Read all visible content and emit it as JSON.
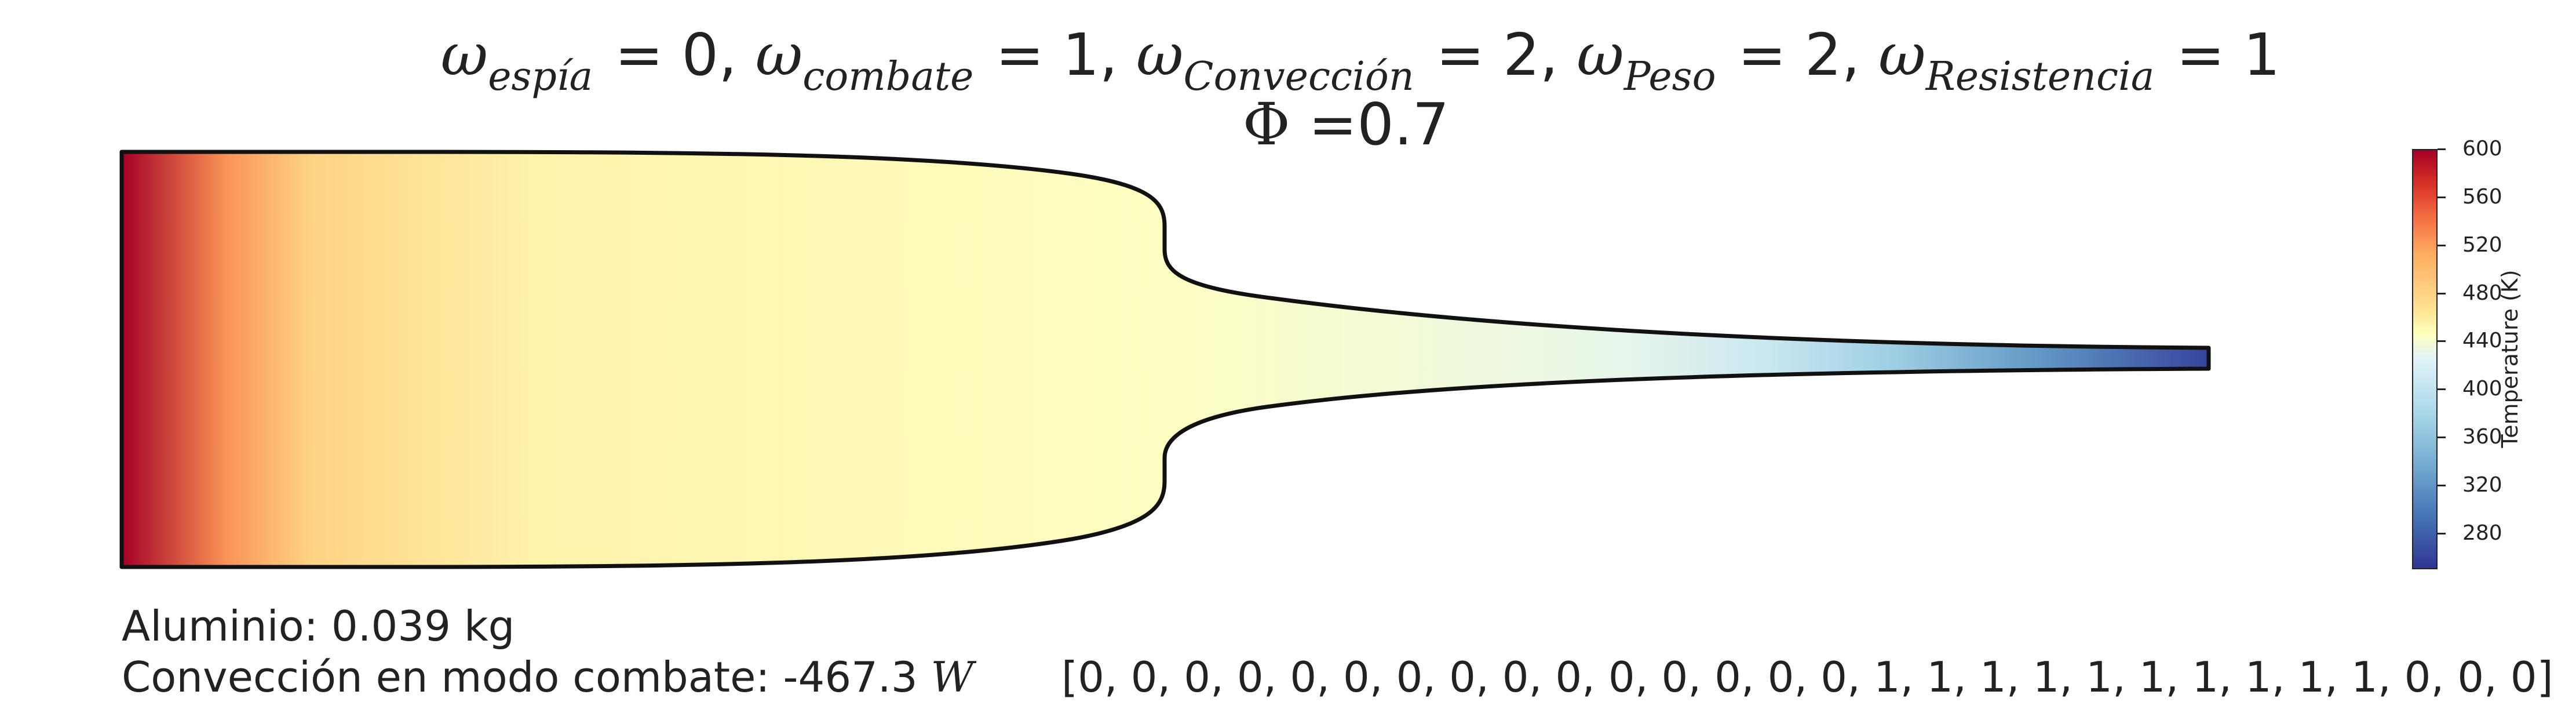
{
  "title": {
    "weights": [
      {
        "symbol": "ω",
        "subscript": "espía",
        "value": "0",
        "sep": ", "
      },
      {
        "symbol": "ω",
        "subscript": "combate",
        "value": "1",
        "sep": ", "
      },
      {
        "symbol": "ω",
        "subscript": "Convección",
        "value": "2",
        "sep": ", "
      },
      {
        "symbol": "ω",
        "subscript": "Peso",
        "value": "2",
        "sep": ", "
      },
      {
        "symbol": "ω",
        "subscript": "Resistencia",
        "value": "1",
        "sep": ""
      }
    ],
    "phi_symbol": "Φ",
    "phi_text": " =0.7"
  },
  "chart_data": {
    "type": "heatmap",
    "description": "Temperature field along a fin profile; temperature decreases from base (left) to tip (right)",
    "temperature_profile": [
      {
        "position": 0.0,
        "temperature": 600
      },
      {
        "position": 0.05,
        "temperature": 525
      },
      {
        "position": 0.09,
        "temperature": 480
      },
      {
        "position": 0.2,
        "temperature": 455
      },
      {
        "position": 0.5,
        "temperature": 445
      },
      {
        "position": 0.72,
        "temperature": 430
      },
      {
        "position": 0.79,
        "temperature": 405
      },
      {
        "position": 0.85,
        "temperature": 370
      },
      {
        "position": 0.92,
        "temperature": 320
      },
      {
        "position": 1.0,
        "temperature": 260
      }
    ],
    "colorbar": {
      "label": "Temperature (K)",
      "colormap": "RdYlBu_r",
      "range": [
        250,
        600
      ],
      "ticks": [
        280,
        320,
        360,
        400,
        440,
        480,
        520,
        560,
        600
      ]
    },
    "colors": {
      "min": "#313695",
      "mid": "#ffffbf",
      "max": "#a50026"
    }
  },
  "info": {
    "material_label": "Aluminio: 0.039 kg",
    "convection_label": "Convección en modo combate: -467.3 ",
    "convection_unit": "W",
    "design_vector": "[0, 0, 0, 0, 0, 0, 0, 0, 0, 0, 0, 0, 0, 0, 0, 1, 1, 1, 1, 1, 1, 1, 1, 1, 1, 0, 0, 0]"
  }
}
